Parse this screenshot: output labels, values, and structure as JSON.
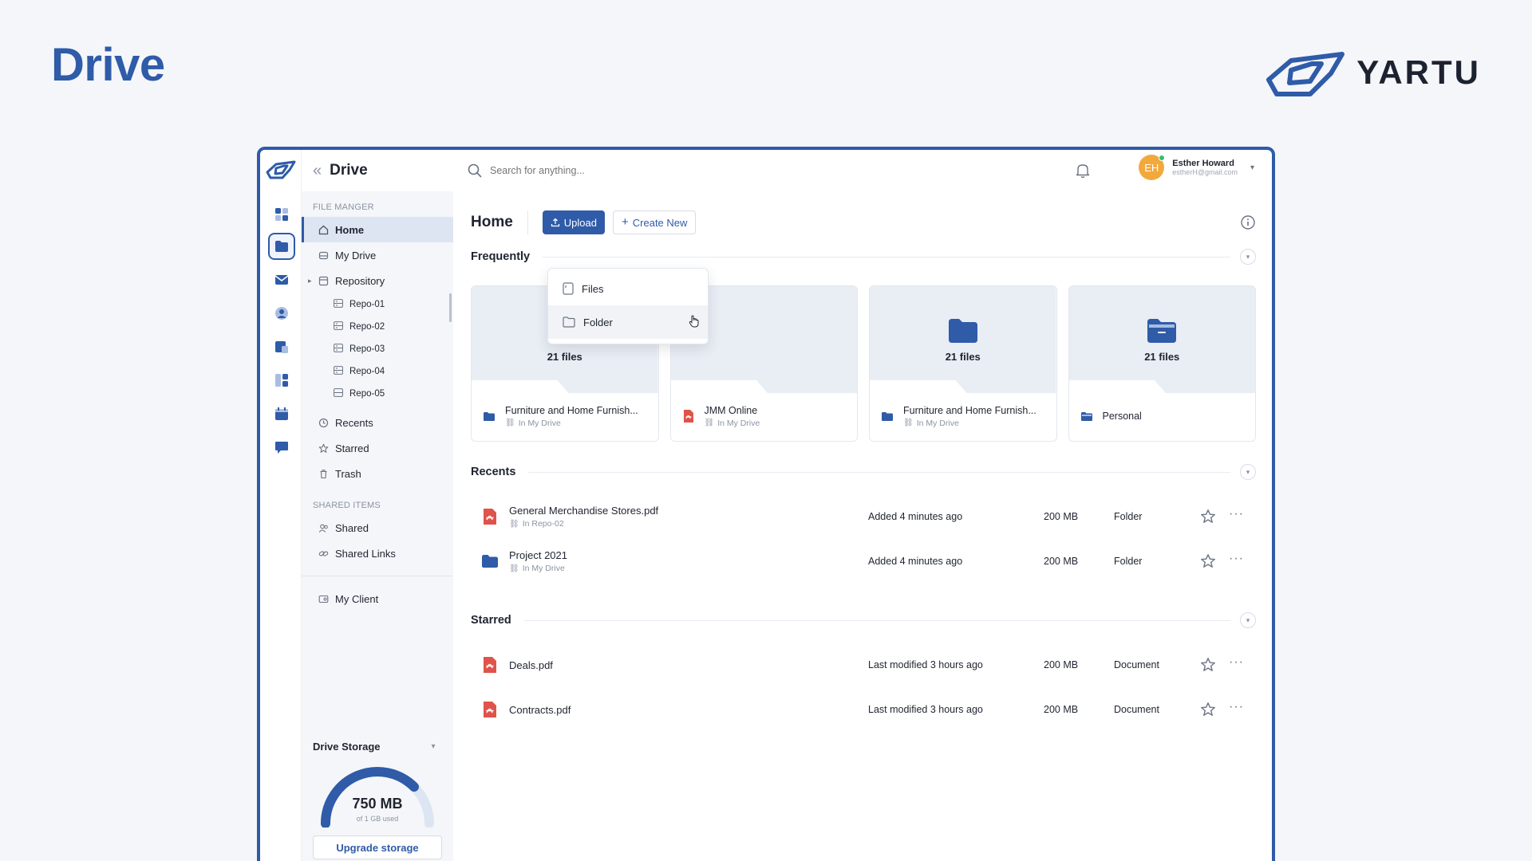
{
  "hero": {
    "title": "Drive",
    "brand": "YARTU"
  },
  "app": {
    "header": {
      "title": "Drive"
    },
    "rail": {
      "items": [
        "dashboard-icon",
        "folder-icon",
        "mail-icon",
        "contacts-icon",
        "notes-icon",
        "apps-icon",
        "calendar-icon",
        "chat-icon"
      ]
    },
    "sidebar": {
      "section_file": "FILE MANGER",
      "items": [
        {
          "label": "Home",
          "icon": "home-icon",
          "active": true
        },
        {
          "label": "My Drive",
          "icon": "drive-icon"
        },
        {
          "label": "Repository",
          "icon": "repository-icon"
        }
      ],
      "repos": [
        "Repo-01",
        "Repo-02",
        "Repo-03",
        "Repo-04",
        "Repo-05"
      ],
      "items2": [
        {
          "label": "Recents",
          "icon": "clock-icon"
        },
        {
          "label": "Starred",
          "icon": "star-icon"
        },
        {
          "label": "Trash",
          "icon": "trash-icon"
        }
      ],
      "section_shared": "SHARED ITEMS",
      "shared": [
        {
          "label": "Shared",
          "icon": "users-icon"
        },
        {
          "label": "Shared Links",
          "icon": "link-icon"
        }
      ],
      "client": {
        "label": "My Client",
        "icon": "client-icon"
      },
      "storage": {
        "title": "Drive Storage",
        "used": "750 MB",
        "sub": "of 1 GB used",
        "fraction": 0.75,
        "button": "Upgrade storage"
      }
    },
    "topbar": {
      "search_placeholder": "Search for anything...",
      "user": {
        "initials": "EH",
        "name": "Esther Howard",
        "email": "estherH@gmail.com"
      }
    },
    "main": {
      "title": "Home",
      "upload": "Upload",
      "create_new": "Create New",
      "dropdown": [
        "Files",
        "Folder"
      ],
      "frequently": "Frequently",
      "cards": [
        {
          "count": "21 files",
          "name": "Furniture and Home Furnish...",
          "loc": "In My Drive",
          "kind": "folder"
        },
        {
          "count": "",
          "name": "JMM Online",
          "loc": "In My Drive",
          "kind": "pdf"
        },
        {
          "count": "21 files",
          "name": "Furniture and Home Furnish...",
          "loc": "In My Drive",
          "kind": "folder"
        },
        {
          "count": "21 files",
          "name": "Personal",
          "loc": "",
          "kind": "folder-open"
        }
      ],
      "recents_label": "Recents",
      "recents": [
        {
          "name": "General Merchandise Stores.pdf",
          "loc": "In Repo-02",
          "when": "Added 4 minutes ago",
          "size": "200 MB",
          "type": "Folder",
          "icon": "pdf"
        },
        {
          "name": "Project 2021",
          "loc": "In My Drive",
          "when": "Added 4 minutes ago",
          "size": "200 MB",
          "type": "Folder",
          "icon": "folder"
        }
      ],
      "starred_label": "Starred",
      "starred": [
        {
          "name": "Deals.pdf",
          "when": "Last modified 3 hours ago",
          "size": "200 MB",
          "type": "Document",
          "icon": "pdf"
        },
        {
          "name": "Contracts.pdf",
          "when": "Last modified 3 hours ago",
          "size": "200 MB",
          "type": "Document",
          "icon": "pdf"
        }
      ]
    },
    "colors": {
      "accent": "#2f5ba8",
      "pdf": "#e0534a",
      "avatar": "#f2a93b",
      "online": "#2fbf71"
    }
  }
}
